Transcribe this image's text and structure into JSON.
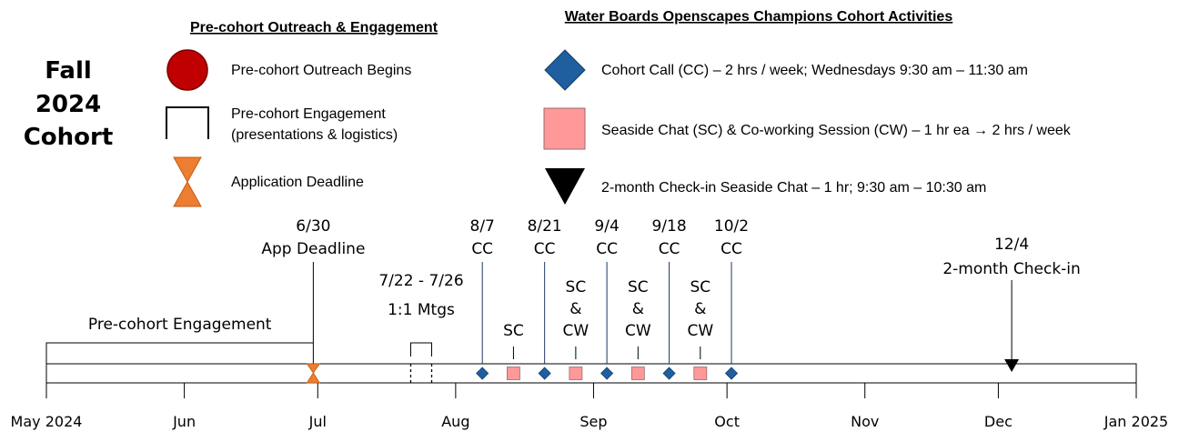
{
  "cohort_title": [
    "Fall",
    "2024",
    "Cohort"
  ],
  "legend_left": {
    "heading": "Pre-cohort Outreach & Engagement",
    "items": [
      {
        "icon": "red-circle-icon",
        "label": [
          "Pre-cohort Outreach Begins"
        ],
        "color": "#c00000"
      },
      {
        "icon": "bracket-icon",
        "label": [
          "Pre-cohort Engagement",
          "(presentations & logistics)"
        ]
      },
      {
        "icon": "hourglass-icon",
        "label": [
          "Application Deadline"
        ],
        "color": "#ed7d31"
      }
    ]
  },
  "legend_right": {
    "heading": "Water Boards Openscapes Champions Cohort Activities",
    "items": [
      {
        "icon": "blue-diamond-icon",
        "label": "Cohort Call (CC) – 2 hrs / week; Wednesdays 9:30 am – 11:30 am",
        "color": "#1f5fa0"
      },
      {
        "icon": "pink-square-icon",
        "label": "Seaside Chat (SC) & Co-working Session (CW) – 1 hr ea →  2 hrs / week",
        "color": "#ff9999"
      },
      {
        "icon": "black-triangle-icon",
        "label": "2-month Check-in Seaside Chat – 1 hr; 9:30 am – 10:30 am",
        "color": "#000000"
      }
    ]
  },
  "timeline": {
    "axis_months": [
      "May 2024",
      "Jun",
      "Jul",
      "Aug",
      "Sep",
      "Oct",
      "Nov",
      "Dec",
      "Jan 2025"
    ],
    "engagement_label": "Pre-cohort Engagement",
    "app_deadline": {
      "date": "2024-06-30",
      "label": [
        "6/30",
        "App Deadline"
      ]
    },
    "one_on_one": {
      "start": "2024-07-22",
      "end": "2024-07-26",
      "label": [
        "7/22 - 7/26",
        "1:1 Mtgs"
      ]
    },
    "cohort_calls": [
      {
        "date": "2024-08-07",
        "label": [
          "8/7",
          "CC"
        ]
      },
      {
        "date": "2024-08-21",
        "label": [
          "8/21",
          "CC"
        ]
      },
      {
        "date": "2024-09-04",
        "label": [
          "9/4",
          "CC"
        ]
      },
      {
        "date": "2024-09-18",
        "label": [
          "9/18",
          "CC"
        ]
      },
      {
        "date": "2024-10-02",
        "label": [
          "10/2",
          "CC"
        ]
      }
    ],
    "seaside_sessions": [
      {
        "date": "2024-08-14",
        "label": [
          "SC"
        ]
      },
      {
        "date": "2024-08-28",
        "label": [
          "SC",
          "&",
          "CW"
        ]
      },
      {
        "date": "2024-09-11",
        "label": [
          "SC",
          "&",
          "CW"
        ]
      },
      {
        "date": "2024-09-25",
        "label": [
          "SC",
          "&",
          "CW"
        ]
      }
    ],
    "check_in": {
      "date": "2024-12-04",
      "label": [
        "12/4",
        "2-month Check-in"
      ]
    }
  }
}
